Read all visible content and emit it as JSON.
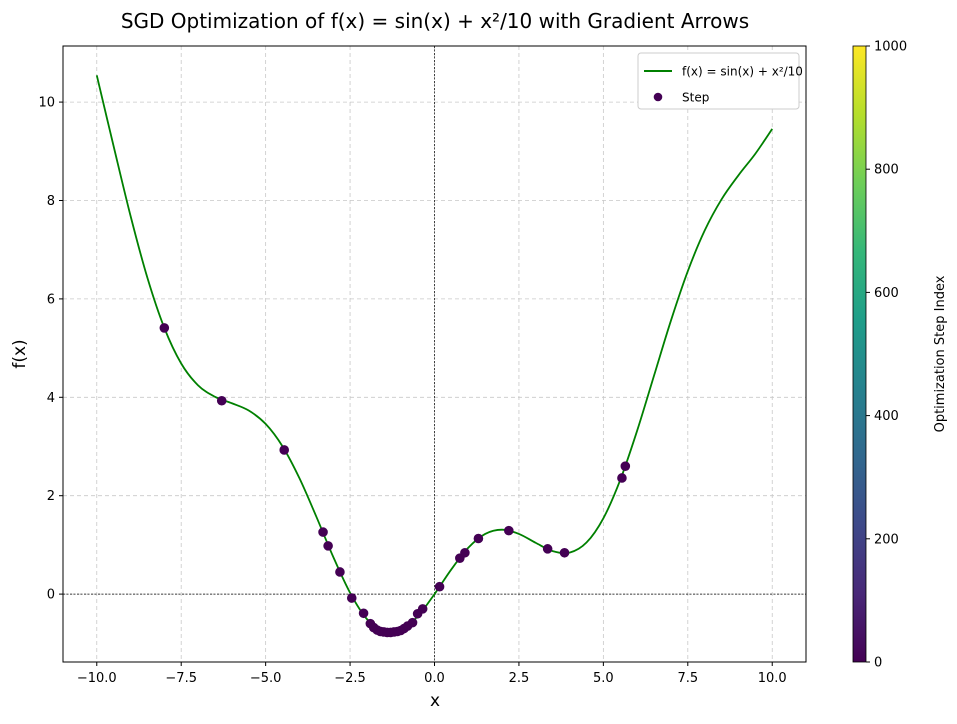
{
  "chart_data": {
    "type": "line",
    "title": "SGD Optimization of f(x) = sin(x) + x²/10 with Gradient Arrows",
    "x_label": "x",
    "y_label": "f(x)",
    "xlim": [
      -11,
      11
    ],
    "ylim": [
      -1.38,
      11.14
    ],
    "xticks": [
      {
        "value": -10,
        "label": "−10.0"
      },
      {
        "value": -7.5,
        "label": "−7.5"
      },
      {
        "value": -5,
        "label": "−5.0"
      },
      {
        "value": -2.5,
        "label": "−2.5"
      },
      {
        "value": 0,
        "label": "0.0"
      },
      {
        "value": 2.5,
        "label": "2.5"
      },
      {
        "value": 5,
        "label": "5.0"
      },
      {
        "value": 7.5,
        "label": "7.5"
      },
      {
        "value": 10,
        "label": "10.0"
      }
    ],
    "yticks": [
      0,
      2,
      4,
      6,
      8,
      10
    ],
    "grid": true,
    "zero_lines": true,
    "legend": "upper right",
    "series": [
      {
        "name": "f(x) = sin(x) + x²/10",
        "type": "line",
        "color": "#008000",
        "x": [
          -10,
          -9.5,
          -9,
          -8.5,
          -8,
          -7.5,
          -7,
          -6.5,
          -6,
          -5.5,
          -5,
          -4.5,
          -4,
          -3.5,
          -3,
          -2.5,
          -2,
          -1.5,
          -1,
          -0.5,
          0,
          0.5,
          1,
          1.5,
          2,
          2.5,
          3,
          3.5,
          4,
          4.5,
          5,
          5.5,
          6,
          6.5,
          7,
          7.5,
          8,
          8.5,
          9,
          9.5,
          10
        ],
        "values": [
          10.544,
          9.1,
          7.688,
          6.427,
          5.411,
          4.687,
          4.243,
          4.01,
          3.879,
          3.731,
          3.459,
          3.003,
          2.357,
          1.576,
          0.759,
          0.0265,
          -0.509,
          -0.7725,
          -0.7415,
          -0.454,
          0,
          0.504,
          0.9415,
          1.2225,
          1.309,
          1.2235,
          1.041,
          0.874,
          0.843,
          1.048,
          1.541,
          2.32,
          3.321,
          4.44,
          5.557,
          6.563,
          7.389,
          8.024,
          8.512,
          8.95,
          9.456
        ]
      },
      {
        "name": "Step",
        "type": "scatter",
        "color": "#440154",
        "x": [
          -8.0,
          -6.3,
          -4.45,
          -3.3,
          -3.15,
          -2.8,
          -2.45,
          -2.1,
          -1.9,
          -1.8,
          -1.7,
          -1.6,
          -1.5,
          -1.4,
          -1.3,
          -1.2,
          -1.1,
          -1.0,
          -0.9,
          -0.8,
          -0.65,
          -0.5,
          -0.35,
          0.15,
          0.75,
          0.9,
          1.3,
          2.2,
          3.35,
          3.85,
          5.55,
          5.65
        ],
        "values": [
          5.41,
          3.93,
          2.93,
          1.26,
          0.98,
          0.45,
          -0.08,
          -0.39,
          -0.6,
          -0.68,
          -0.73,
          -0.76,
          -0.77,
          -0.78,
          -0.78,
          -0.77,
          -0.76,
          -0.74,
          -0.7,
          -0.65,
          -0.58,
          -0.4,
          -0.3,
          0.15,
          0.73,
          0.84,
          1.13,
          1.29,
          0.92,
          0.84,
          2.36,
          2.6
        ]
      }
    ],
    "colorbar": {
      "label": "Optimization Step Index",
      "lim": [
        0,
        1000
      ],
      "ticks": [
        0,
        200,
        400,
        600,
        800,
        1000
      ],
      "colors": [
        "#440154",
        "#482878",
        "#3e4989",
        "#31688e",
        "#26828e",
        "#1f9e89",
        "#35b779",
        "#6ece58",
        "#b5de2b",
        "#fde725"
      ]
    }
  }
}
